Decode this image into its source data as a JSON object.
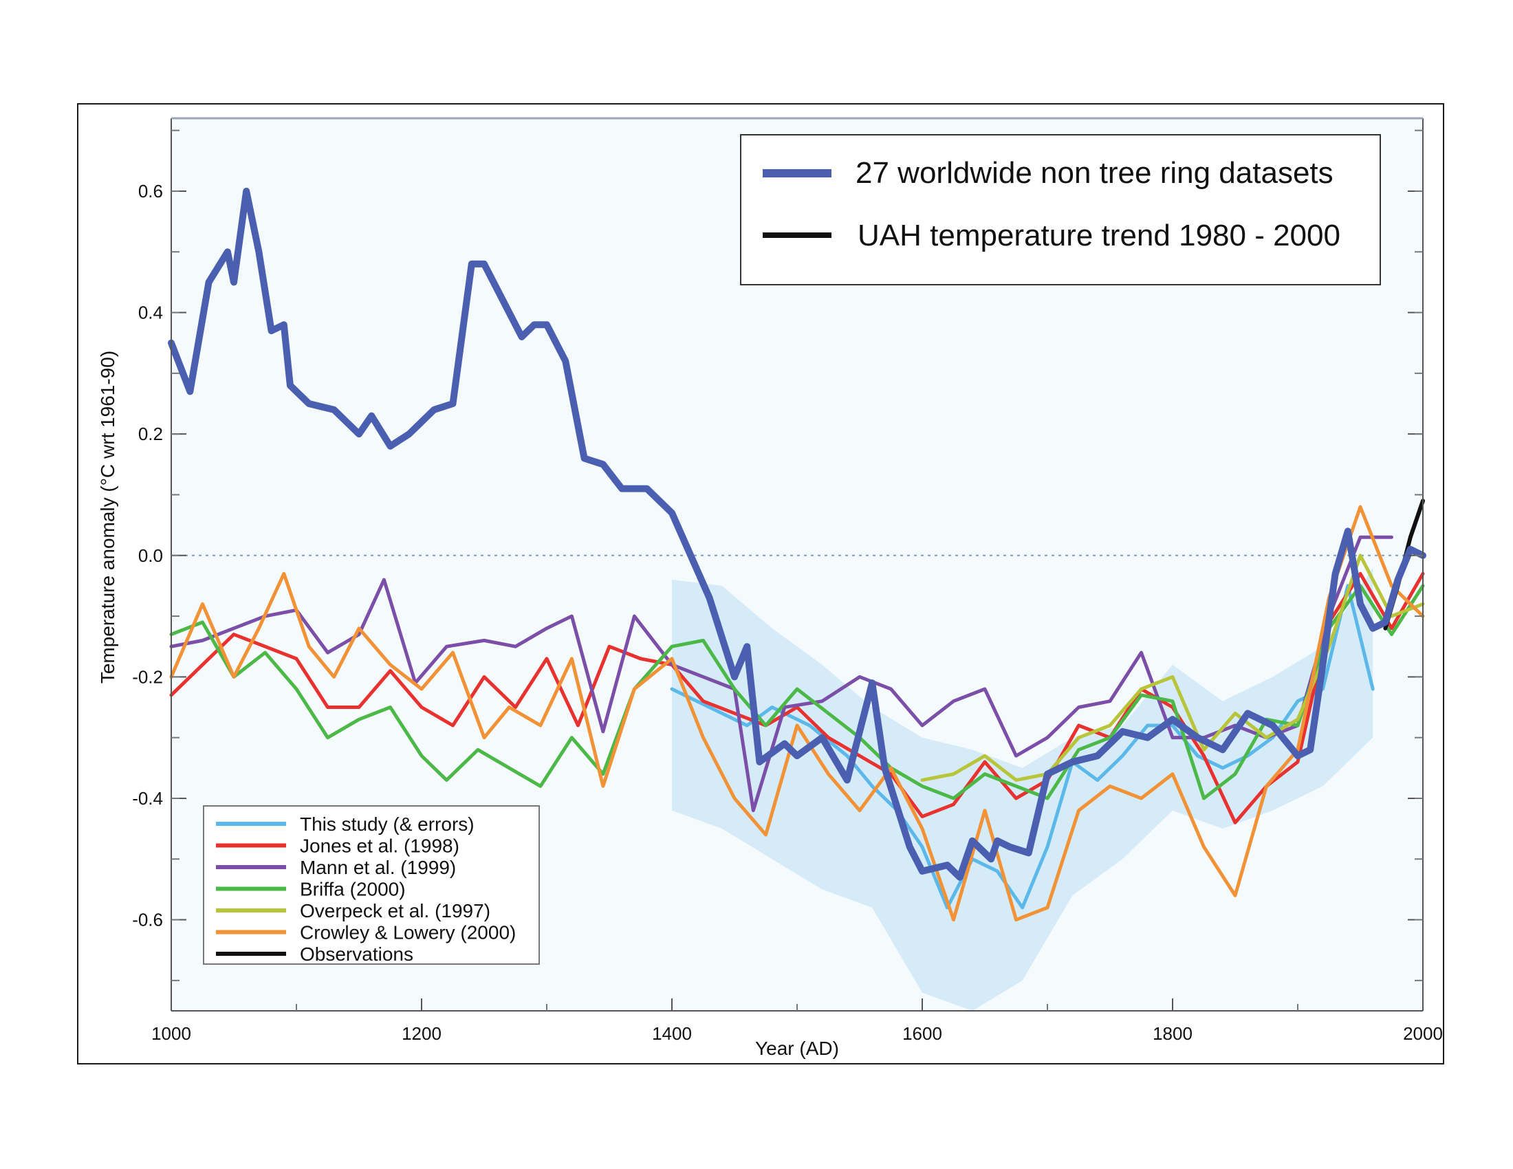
{
  "chart_data": {
    "type": "line",
    "title": "",
    "xlabel": "Year  (AD)",
    "ylabel": "Temperature anomaly  (°C wrt 1961-90)",
    "xlim": [
      1000,
      2000
    ],
    "ylim": [
      -0.75,
      0.72
    ],
    "x_ticks": [
      1000,
      1200,
      1400,
      1600,
      1800,
      2000
    ],
    "x_tick_labels": [
      "1000",
      "1200",
      "1400",
      "1600",
      "1800",
      "2000"
    ],
    "y_ticks": [
      0.6,
      0.4,
      0.2,
      0.0,
      -0.2,
      -0.4,
      -0.6
    ],
    "y_tick_labels": [
      "0.6",
      "0.4",
      "0.2",
      "0.0",
      "-0.2",
      "-0.4",
      "-0.6"
    ],
    "zero_line": true,
    "legend_main": [
      {
        "label": "27 worldwide non tree ring datasets",
        "color": "#4a5fb0"
      },
      {
        "label": "UAH temperature trend 1980 - 2000",
        "color": "#111111"
      }
    ],
    "legend_inset": [
      {
        "label": "This study (& errors)",
        "color": "#5bb8e8"
      },
      {
        "label": "Jones et al. (1998)",
        "color": "#e8322f"
      },
      {
        "label": "Mann et al. (1999)",
        "color": "#7b4fa8"
      },
      {
        "label": "Briffa (2000)",
        "color": "#4cb848"
      },
      {
        "label": "Overpeck et al. (1997)",
        "color": "#b8c43a"
      },
      {
        "label": "Crowley & Lowery (2000)",
        "color": "#f29237"
      },
      {
        "label": "Observations",
        "color": "#111111"
      }
    ],
    "error_band": {
      "color": "#cfe8f7",
      "x": [
        1400,
        1440,
        1480,
        1520,
        1560,
        1600,
        1640,
        1680,
        1720,
        1760,
        1800,
        1840,
        1880,
        1920,
        1960
      ],
      "upper": [
        -0.04,
        -0.05,
        -0.12,
        -0.18,
        -0.25,
        -0.3,
        -0.32,
        -0.35,
        -0.3,
        -0.28,
        -0.18,
        -0.24,
        -0.2,
        -0.15,
        -0.02
      ],
      "lower": [
        -0.42,
        -0.45,
        -0.5,
        -0.55,
        -0.58,
        -0.72,
        -0.75,
        -0.7,
        -0.56,
        -0.5,
        -0.42,
        -0.45,
        -0.42,
        -0.38,
        -0.3
      ]
    },
    "series": [
      {
        "name": "27 worldwide non tree ring datasets",
        "color": "#4a5fb0",
        "width": 10,
        "x": [
          1000,
          1015,
          1030,
          1045,
          1050,
          1060,
          1070,
          1080,
          1090,
          1095,
          1110,
          1130,
          1150,
          1160,
          1175,
          1190,
          1210,
          1225,
          1240,
          1250,
          1265,
          1280,
          1290,
          1300,
          1315,
          1330,
          1345,
          1360,
          1380,
          1400,
          1430,
          1450,
          1460,
          1470,
          1490,
          1500,
          1520,
          1540,
          1560,
          1570,
          1590,
          1600,
          1620,
          1630,
          1640,
          1655,
          1660,
          1670,
          1685,
          1700,
          1720,
          1740,
          1760,
          1780,
          1800,
          1820,
          1840,
          1860,
          1880,
          1900,
          1910,
          1920,
          1930,
          1940,
          1950,
          1960,
          1970,
          1980,
          1990,
          2000
        ],
        "y": [
          0.35,
          0.27,
          0.45,
          0.5,
          0.45,
          0.6,
          0.5,
          0.37,
          0.38,
          0.28,
          0.25,
          0.24,
          0.2,
          0.23,
          0.18,
          0.2,
          0.24,
          0.25,
          0.48,
          0.48,
          0.42,
          0.36,
          0.38,
          0.38,
          0.32,
          0.16,
          0.15,
          0.11,
          0.11,
          0.07,
          -0.07,
          -0.2,
          -0.15,
          -0.34,
          -0.31,
          -0.33,
          -0.3,
          -0.37,
          -0.21,
          -0.35,
          -0.48,
          -0.52,
          -0.51,
          -0.53,
          -0.47,
          -0.5,
          -0.47,
          -0.48,
          -0.49,
          -0.36,
          -0.34,
          -0.33,
          -0.29,
          -0.3,
          -0.27,
          -0.3,
          -0.32,
          -0.26,
          -0.28,
          -0.33,
          -0.32,
          -0.18,
          -0.03,
          0.04,
          -0.08,
          -0.12,
          -0.11,
          -0.04,
          0.01,
          0.0
        ]
      },
      {
        "name": "This study (& errors)",
        "color": "#5bb8e8",
        "width": 5,
        "x": [
          1400,
          1430,
          1460,
          1480,
          1510,
          1540,
          1560,
          1580,
          1600,
          1620,
          1640,
          1660,
          1680,
          1700,
          1720,
          1740,
          1760,
          1780,
          1800,
          1820,
          1840,
          1860,
          1880,
          1900,
          1920,
          1940,
          1960
        ],
        "y": [
          -0.22,
          -0.25,
          -0.28,
          -0.25,
          -0.28,
          -0.33,
          -0.38,
          -0.42,
          -0.48,
          -0.58,
          -0.5,
          -0.52,
          -0.58,
          -0.48,
          -0.34,
          -0.37,
          -0.33,
          -0.28,
          -0.28,
          -0.33,
          -0.35,
          -0.33,
          -0.3,
          -0.24,
          -0.22,
          -0.05,
          -0.22
        ]
      },
      {
        "name": "Jones et al. (1998)",
        "color": "#e8322f",
        "width": 5,
        "x": [
          1000,
          1025,
          1050,
          1075,
          1100,
          1125,
          1150,
          1175,
          1200,
          1225,
          1250,
          1275,
          1300,
          1325,
          1350,
          1375,
          1400,
          1425,
          1450,
          1475,
          1500,
          1525,
          1550,
          1575,
          1600,
          1625,
          1650,
          1675,
          1700,
          1725,
          1750,
          1775,
          1800,
          1825,
          1850,
          1875,
          1900,
          1925,
          1950,
          1975,
          2000
        ],
        "y": [
          -0.23,
          -0.18,
          -0.13,
          -0.15,
          -0.17,
          -0.25,
          -0.25,
          -0.19,
          -0.25,
          -0.28,
          -0.2,
          -0.25,
          -0.17,
          -0.28,
          -0.15,
          -0.17,
          -0.18,
          -0.24,
          -0.26,
          -0.28,
          -0.25,
          -0.3,
          -0.33,
          -0.36,
          -0.43,
          -0.41,
          -0.34,
          -0.4,
          -0.37,
          -0.28,
          -0.3,
          -0.22,
          -0.25,
          -0.33,
          -0.44,
          -0.38,
          -0.34,
          -0.11,
          -0.03,
          -0.12,
          -0.03
        ]
      },
      {
        "name": "Mann et al. (1999)",
        "color": "#7b4fa8",
        "width": 5,
        "x": [
          1000,
          1025,
          1050,
          1075,
          1100,
          1125,
          1150,
          1170,
          1195,
          1220,
          1250,
          1275,
          1300,
          1320,
          1345,
          1370,
          1400,
          1425,
          1450,
          1465,
          1490,
          1520,
          1550,
          1575,
          1600,
          1625,
          1650,
          1675,
          1700,
          1725,
          1750,
          1775,
          1800,
          1825,
          1850,
          1875,
          1900,
          1925,
          1950,
          1975
        ],
        "y": [
          -0.15,
          -0.14,
          -0.12,
          -0.1,
          -0.09,
          -0.16,
          -0.13,
          -0.04,
          -0.21,
          -0.15,
          -0.14,
          -0.15,
          -0.12,
          -0.1,
          -0.29,
          -0.1,
          -0.18,
          -0.2,
          -0.22,
          -0.42,
          -0.25,
          -0.24,
          -0.2,
          -0.22,
          -0.28,
          -0.24,
          -0.22,
          -0.33,
          -0.3,
          -0.25,
          -0.24,
          -0.16,
          -0.3,
          -0.3,
          -0.28,
          -0.3,
          -0.28,
          -0.1,
          0.03,
          0.03
        ]
      },
      {
        "name": "Briffa (2000)",
        "color": "#4cb848",
        "width": 5,
        "x": [
          1000,
          1025,
          1050,
          1075,
          1100,
          1125,
          1150,
          1175,
          1200,
          1220,
          1245,
          1270,
          1295,
          1320,
          1345,
          1370,
          1400,
          1425,
          1450,
          1475,
          1500,
          1525,
          1550,
          1575,
          1600,
          1625,
          1650,
          1675,
          1700,
          1725,
          1750,
          1775,
          1800,
          1825,
          1850,
          1875,
          1900,
          1925,
          1950,
          1975,
          2000
        ],
        "y": [
          -0.13,
          -0.11,
          -0.2,
          -0.16,
          -0.22,
          -0.3,
          -0.27,
          -0.25,
          -0.33,
          -0.37,
          -0.32,
          -0.35,
          -0.38,
          -0.3,
          -0.36,
          -0.22,
          -0.15,
          -0.14,
          -0.22,
          -0.28,
          -0.22,
          -0.26,
          -0.3,
          -0.35,
          -0.38,
          -0.4,
          -0.36,
          -0.38,
          -0.4,
          -0.32,
          -0.3,
          -0.23,
          -0.24,
          -0.4,
          -0.36,
          -0.27,
          -0.28,
          -0.12,
          -0.05,
          -0.13,
          -0.05
        ]
      },
      {
        "name": "Overpeck et al. (1997)",
        "color": "#b8c43a",
        "width": 5,
        "x": [
          1600,
          1625,
          1650,
          1675,
          1700,
          1725,
          1750,
          1775,
          1800,
          1825,
          1850,
          1875,
          1900,
          1925,
          1950,
          1975,
          2000
        ],
        "y": [
          -0.37,
          -0.36,
          -0.33,
          -0.37,
          -0.36,
          -0.3,
          -0.28,
          -0.22,
          -0.2,
          -0.32,
          -0.26,
          -0.3,
          -0.27,
          -0.15,
          0.0,
          -0.1,
          -0.08
        ]
      },
      {
        "name": "Crowley & Lowery (2000)",
        "color": "#f29237",
        "width": 5,
        "x": [
          1000,
          1025,
          1050,
          1070,
          1090,
          1110,
          1130,
          1150,
          1175,
          1200,
          1225,
          1250,
          1270,
          1295,
          1320,
          1345,
          1370,
          1400,
          1425,
          1450,
          1475,
          1500,
          1525,
          1550,
          1575,
          1600,
          1625,
          1650,
          1675,
          1700,
          1725,
          1750,
          1775,
          1800,
          1825,
          1850,
          1875,
          1900,
          1925,
          1950,
          1975,
          2000
        ],
        "y": [
          -0.2,
          -0.08,
          -0.2,
          -0.12,
          -0.03,
          -0.15,
          -0.2,
          -0.12,
          -0.18,
          -0.22,
          -0.16,
          -0.3,
          -0.25,
          -0.28,
          -0.17,
          -0.38,
          -0.22,
          -0.17,
          -0.3,
          -0.4,
          -0.46,
          -0.28,
          -0.36,
          -0.42,
          -0.35,
          -0.45,
          -0.6,
          -0.42,
          -0.6,
          -0.58,
          -0.42,
          -0.38,
          -0.4,
          -0.36,
          -0.48,
          -0.56,
          -0.38,
          -0.32,
          -0.07,
          0.08,
          -0.05,
          -0.1
        ]
      },
      {
        "name": "Observations",
        "color": "#111111",
        "width": 6,
        "x": [
          1970,
          1980,
          1990,
          2000
        ],
        "y": [
          -0.12,
          -0.05,
          0.03,
          0.09
        ]
      }
    ]
  }
}
